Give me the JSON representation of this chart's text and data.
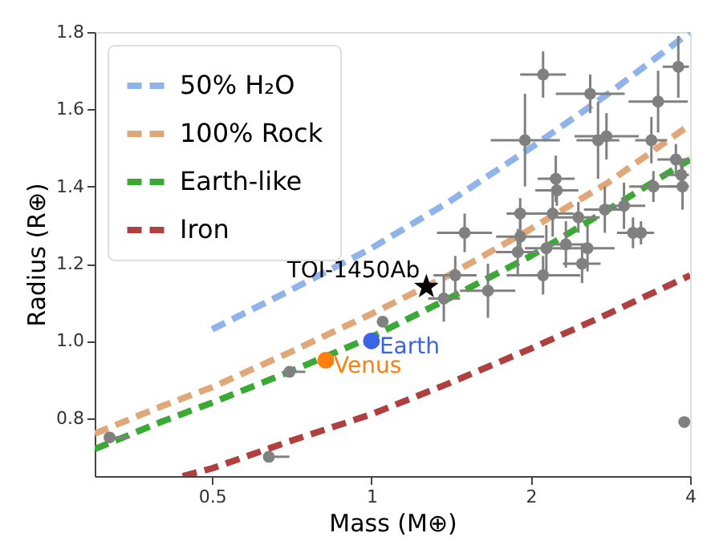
{
  "chart_data": {
    "type": "scatter",
    "xlabel": "Mass (M⊕)",
    "ylabel": "Radius (R⊕)",
    "log": "x",
    "grid": false,
    "legend": "top left",
    "xlim": [
      0.3,
      4
    ],
    "xticks": [
      0.5,
      1,
      2,
      4
    ],
    "ylim": [
      0.65,
      1.8
    ],
    "yticks": [
      {
        "value": 0.8,
        "label": "0.8"
      },
      {
        "value": 1.0,
        "label": "1.0"
      },
      {
        "value": 1.2,
        "label": "1.2"
      },
      {
        "value": 1.4,
        "label": "1.4"
      },
      {
        "value": 1.6,
        "label": "1.6"
      },
      {
        "value": 1.8,
        "label": "1.8"
      }
    ],
    "series": [
      {
        "name": "50% H₂O",
        "type": "line",
        "line_style": "dashed",
        "color": "#8fb3ea",
        "x": [
          0.5,
          0.7,
          1,
          1.4,
          2,
          2.8,
          4
        ],
        "values": [
          1.03,
          1.13,
          1.24,
          1.36,
          1.5,
          1.64,
          1.8
        ]
      },
      {
        "name": "100% Rock",
        "type": "line",
        "line_style": "dashed",
        "color": "#e0a878",
        "x": [
          0.3,
          0.4,
          0.5,
          0.7,
          1,
          1.4,
          2,
          2.8,
          4
        ],
        "values": [
          0.76,
          0.83,
          0.88,
          0.97,
          1.07,
          1.17,
          1.29,
          1.41,
          1.56
        ]
      },
      {
        "name": "Earth-like",
        "type": "line",
        "line_style": "dashed",
        "color": "#3aaa35",
        "x": [
          0.3,
          0.4,
          0.5,
          0.7,
          1,
          1.4,
          2,
          2.8,
          4
        ],
        "values": [
          0.72,
          0.79,
          0.84,
          0.92,
          1.01,
          1.11,
          1.22,
          1.34,
          1.47
        ]
      },
      {
        "name": "Iron",
        "type": "line",
        "line_style": "dashed",
        "color": "#b04040",
        "x": [
          0.44,
          0.5,
          0.7,
          1,
          1.4,
          2,
          2.8,
          4
        ],
        "values": [
          0.65,
          0.67,
          0.74,
          0.81,
          0.89,
          0.98,
          1.07,
          1.17
        ]
      },
      {
        "type": "scatter",
        "marker": "circle",
        "color": "#808080",
        "x": [
          2.11,
          2.59,
          3.8,
          3.48,
          1.95,
          2.68,
          2.78,
          3.38,
          3.76,
          2.23,
          2.24,
          3.85,
          3.41,
          3.87,
          1.91,
          2.2,
          2.46,
          2.76,
          3.0,
          1.5,
          1.91,
          3.12,
          3.23,
          1.89,
          2.14,
          2.33,
          2.56,
          2.5,
          1.44,
          2.11,
          1.66,
          1.37,
          1.05,
          3.9,
          0.32,
          0.64,
          0.7
        ],
        "values": [
          1.69,
          1.64,
          1.71,
          1.62,
          1.52,
          1.52,
          1.53,
          1.52,
          1.47,
          1.42,
          1.39,
          1.43,
          1.4,
          1.4,
          1.33,
          1.33,
          1.32,
          1.34,
          1.35,
          1.28,
          1.27,
          1.28,
          1.28,
          1.23,
          1.24,
          1.25,
          1.24,
          1.2,
          1.17,
          1.17,
          1.13,
          1.11,
          1.05,
          0.79,
          0.75,
          0.7,
          0.92
        ],
        "errors": [
          0.06,
          0.05,
          0.08,
          0.08,
          0.12,
          0.1,
          0.06,
          0.06,
          0.04,
          0.06,
          0.04,
          0.04,
          0.04,
          0.06,
          0.04,
          0.06,
          0.04,
          0.06,
          0.06,
          0.05,
          0.05,
          0.04,
          0.03,
          0.06,
          0.06,
          0.06,
          0.06,
          0.05,
          0.05,
          0.05,
          0.07,
          0.06,
          null,
          null,
          null,
          null,
          null
        ],
        "xerrors": [
          [
            1.91,
            2.33
          ],
          [
            2.23,
            3.01
          ],
          [
            3.55,
            3.98
          ],
          [
            3.06,
            3.96
          ],
          [
            1.68,
            2.27
          ],
          [
            2.44,
            2.94
          ],
          [
            2.42,
            3.2
          ],
          [
            3.15,
            3.62
          ],
          [
            3.47,
            3.98
          ],
          [
            2.06,
            2.42
          ],
          [
            2.04,
            2.46
          ],
          [
            3.51,
            3.98
          ],
          [
            3.07,
            3.79
          ],
          [
            3.61,
            3.98
          ],
          [
            1.8,
            2.03
          ],
          [
            2.01,
            2.41
          ],
          [
            2.24,
            2.7
          ],
          [
            2.52,
            3.03
          ],
          [
            2.73,
            3.29
          ],
          [
            1.33,
            1.69
          ],
          [
            1.72,
            2.12
          ],
          [
            2.91,
            3.34
          ],
          [
            3.05,
            3.42
          ],
          [
            1.72,
            2.07
          ],
          [
            1.95,
            2.35
          ],
          [
            2.12,
            2.56
          ],
          [
            2.28,
            2.88
          ],
          [
            2.3,
            2.71
          ],
          [
            1.31,
            1.58
          ],
          [
            1.8,
            2.48
          ],
          [
            1.47,
            1.87
          ],
          [
            1.28,
            1.47
          ],
          null,
          null,
          [
            0.32,
            0.35
          ],
          [
            0.64,
            0.7
          ],
          [
            0.7,
            0.75
          ]
        ]
      },
      {
        "name": "TOI-1450Ab",
        "type": "scatter",
        "marker": "star",
        "color": "#000000",
        "x": [
          1.27
        ],
        "values": [
          1.14
        ]
      },
      {
        "name": "Earth",
        "type": "scatter",
        "marker": "circle",
        "color": "#3c64e6",
        "x": [
          1.0
        ],
        "values": [
          1.0
        ]
      },
      {
        "name": "Venus",
        "type": "scatter",
        "marker": "circle",
        "color": "#ff7f0e",
        "x": [
          0.82
        ],
        "values": [
          0.95
        ]
      }
    ]
  }
}
